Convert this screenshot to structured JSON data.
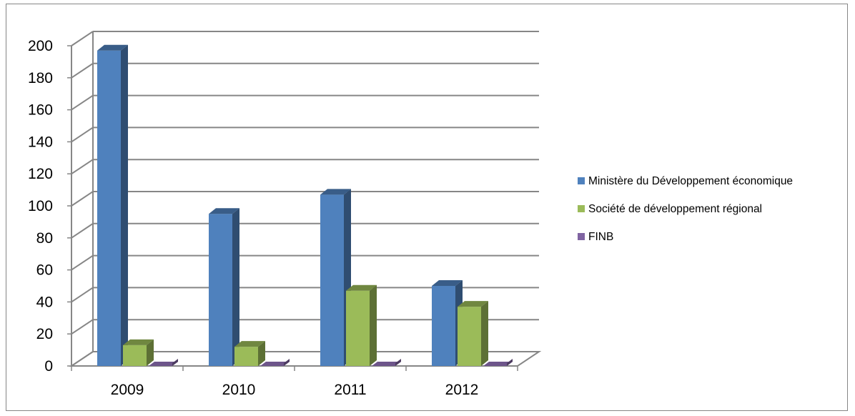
{
  "chart_data": {
    "type": "bar",
    "style": "3d-clustered-column",
    "categories": [
      "2009",
      "2010",
      "2011",
      "2012"
    ],
    "series": [
      {
        "name": "Ministère du Développement économique",
        "values": [
          197,
          95,
          107,
          50
        ],
        "color": "#4F81BD"
      },
      {
        "name": "Société de développement régional",
        "values": [
          13,
          12,
          47,
          37
        ],
        "color": "#9BBB59"
      },
      {
        "name": "FINB",
        "values": [
          1,
          1,
          1,
          1
        ],
        "color": "#8064A2"
      }
    ],
    "yticks": [
      "0",
      "20",
      "40",
      "60",
      "80",
      "100",
      "120",
      "140",
      "160",
      "180",
      "200"
    ],
    "ylim": [
      0,
      200
    ],
    "grid": true,
    "legend_position": "right"
  }
}
